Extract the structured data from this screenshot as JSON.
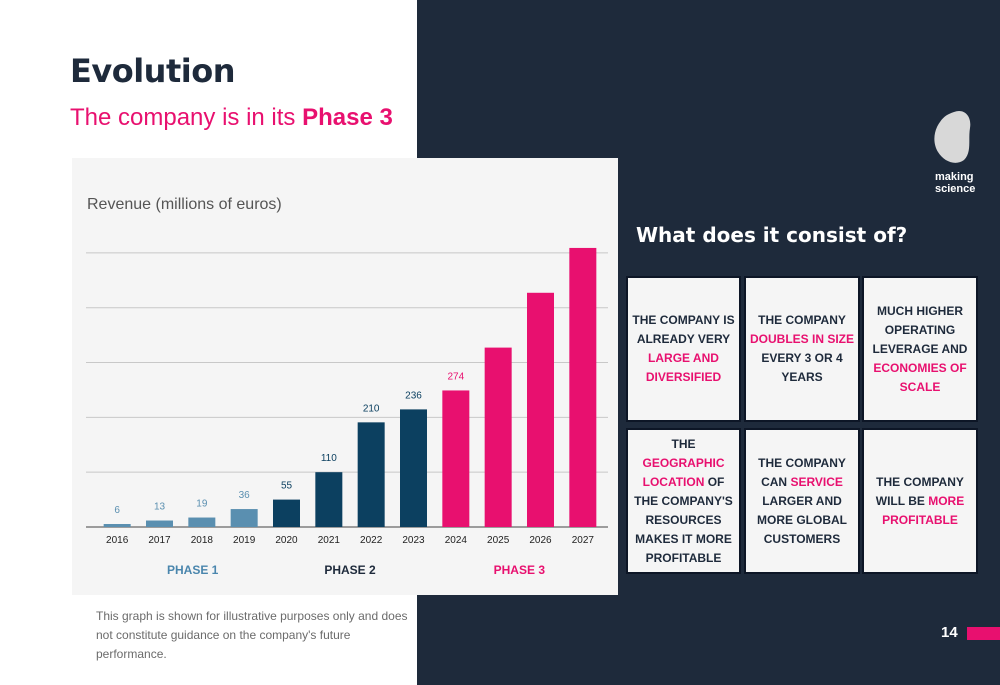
{
  "title": "Evolution",
  "subtitle": {
    "prefix": "The company is in its ",
    "highlight": "Phase 3"
  },
  "chart_data": {
    "type": "bar",
    "title": "Revenue (millions of euros)",
    "categories": [
      "2016",
      "2017",
      "2018",
      "2019",
      "2020",
      "2021",
      "2022",
      "2023",
      "2024",
      "2025",
      "2026",
      "2027"
    ],
    "values": [
      6,
      13,
      19,
      36,
      55,
      110,
      210,
      236,
      274,
      360,
      470,
      560
    ],
    "labels": [
      "6",
      "13",
      "19",
      "36",
      "55",
      "110",
      "210",
      "236",
      "274",
      "",
      "",
      ""
    ],
    "phase_index": [
      1,
      1,
      1,
      1,
      2,
      2,
      2,
      2,
      3,
      3,
      3,
      3
    ],
    "phases": [
      {
        "label": "PHASE 1",
        "color": "#5a8fb0",
        "label_color": "#4a86ad"
      },
      {
        "label": "PHASE 2",
        "color": "#0c4060",
        "label_color": "#1e2a3b"
      },
      {
        "label": "PHASE 3",
        "color": "#e8106f",
        "label_color": "#e8106f"
      }
    ],
    "ylim": [
      0,
      600
    ],
    "gridlines": [
      0,
      110,
      220,
      330,
      440,
      550
    ],
    "grid": true,
    "xlabel": "",
    "ylabel": ""
  },
  "logo": {
    "line1": "making",
    "line2": "science"
  },
  "heading": "What does it consist of?",
  "cards": [
    [
      {
        "t": "THE COMPANY IS ALREADY VERY "
      },
      {
        "t": "LARGE AND DIVERSIFIED",
        "hl": true
      }
    ],
    [
      {
        "t": "THE COMPANY "
      },
      {
        "t": "DOUBLES IN SIZE",
        "hl": true
      },
      {
        "t": " EVERY 3 OR 4 YEARS"
      }
    ],
    [
      {
        "t": "MUCH HIGHER OPERATING LEVERAGE AND "
      },
      {
        "t": "ECONOMIES OF SCALE",
        "hl": true
      }
    ],
    [
      {
        "t": "THE "
      },
      {
        "t": "GEOGRAPHIC LOCATION",
        "hl": true
      },
      {
        "t": " OF THE COMPANY'S RESOURCES MAKES IT MORE PROFITABLE"
      }
    ],
    [
      {
        "t": "THE COMPANY CAN "
      },
      {
        "t": "SERVICE",
        "hl": true
      },
      {
        "t": " LARGER AND MORE GLOBAL CUSTOMERS"
      }
    ],
    [
      {
        "t": "THE COMPANY WILL BE "
      },
      {
        "t": "MORE PROFITABLE",
        "hl": true
      }
    ]
  ],
  "disclaimer": "This graph is shown for illustrative purposes only and does not constitute guidance on the company's future performance.",
  "page_number": "14",
  "colors": {
    "dark": "#1e2a3b",
    "accent": "#e8106f"
  }
}
